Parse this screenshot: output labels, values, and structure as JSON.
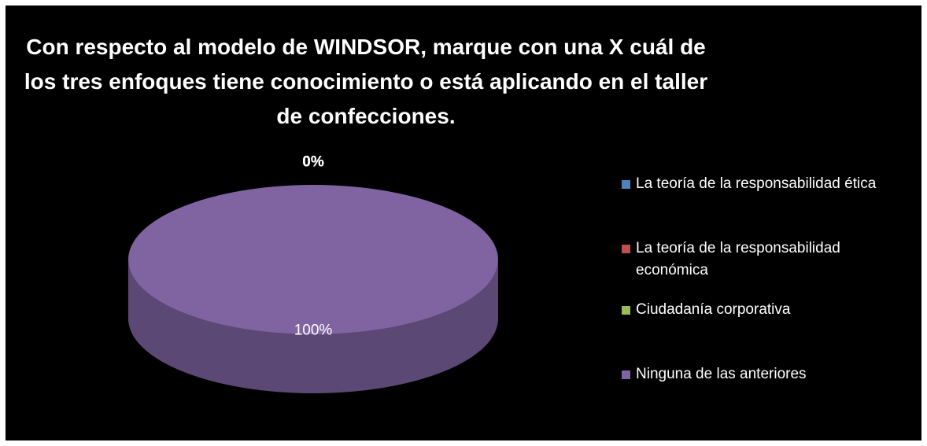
{
  "chart_data": {
    "type": "pie",
    "title": "Con respecto al modelo de WINDSOR, marque con una X cuál de los tres enfoques tiene conocimiento o está aplicando en el taller de confecciones.",
    "categories": [
      "La teoría de la responsabilidad ética",
      "La teoría de la responsabilidad económica",
      "Ciudadanía corporativa",
      "Ninguna de las anteriores"
    ],
    "values": [
      0,
      0,
      0,
      100
    ],
    "value_labels": [
      "0%",
      "0%",
      "0%",
      "100%"
    ],
    "colors": [
      "#4f81bd",
      "#c0504d",
      "#9bbb59",
      "#8064a2"
    ],
    "legend": "right"
  }
}
